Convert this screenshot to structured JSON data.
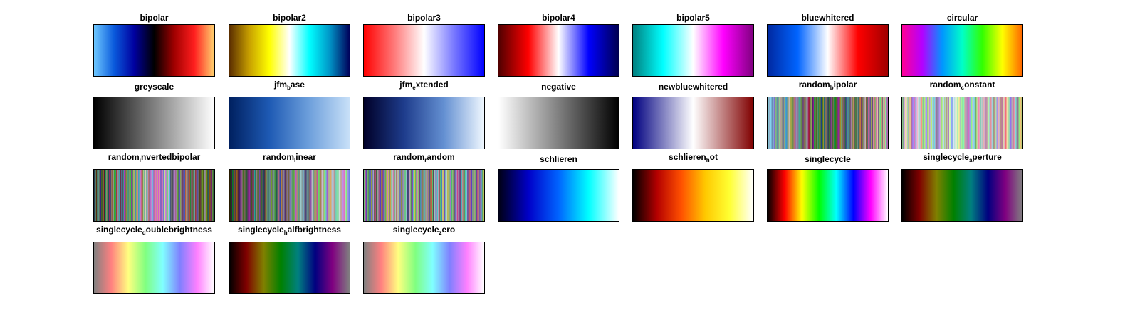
{
  "colormaps": [
    {
      "main": "bipolar",
      "sub": "",
      "rest": "",
      "stops": [
        "#6ec8ff",
        "#0a5adc",
        "#0000a0",
        "#000000",
        "#a00000",
        "#ff1e1e",
        "#ffd26e"
      ]
    },
    {
      "main": "bipolar2",
      "sub": "",
      "rest": "",
      "stops": [
        "#5a2d00",
        "#c8a000",
        "#ffff00",
        "#ffffff",
        "#00ffff",
        "#0096c8",
        "#00005a"
      ]
    },
    {
      "main": "bipolar3",
      "sub": "",
      "rest": "",
      "stops": [
        "#ff0000",
        "#ff7878",
        "#ffffff",
        "#7878ff",
        "#0000ff"
      ]
    },
    {
      "main": "bipolar4",
      "sub": "",
      "rest": "",
      "stops": [
        "#500000",
        "#ff0000",
        "#ffffff",
        "#0000ff",
        "#000050"
      ]
    },
    {
      "main": "bipolar5",
      "sub": "",
      "rest": "",
      "stops": [
        "#008080",
        "#00ffff",
        "#ffffff",
        "#ff00ff",
        "#800080"
      ]
    },
    {
      "main": "bluewhitered",
      "sub": "",
      "rest": "",
      "stops": [
        "#0028a0",
        "#0064ff",
        "#ffffff",
        "#ff0000",
        "#a00000"
      ]
    },
    {
      "main": "circular",
      "sub": "",
      "rest": "",
      "stops": [
        "#ff0096",
        "#b400ff",
        "#0096ff",
        "#00ffc8",
        "#32ff00",
        "#ffff00",
        "#ff6400"
      ]
    },
    {
      "main": "greyscale",
      "sub": "",
      "rest": "",
      "stops": [
        "#000000",
        "#ffffff"
      ]
    },
    {
      "main": "jfm",
      "sub": "b",
      "rest": "ase",
      "stops": [
        "#002060",
        "#1e5ab4",
        "#6ea0dc",
        "#c8e0f8"
      ]
    },
    {
      "main": "jfm",
      "sub": "e",
      "rest": "xtended",
      "stops": [
        "#000028",
        "#1e3c8c",
        "#6490d2",
        "#f0f8ff"
      ]
    },
    {
      "main": "negative",
      "sub": "",
      "rest": "",
      "stops": [
        "#ffffff",
        "#000000"
      ]
    },
    {
      "main": "newbluewhitered",
      "sub": "",
      "rest": "",
      "stops": [
        "#000080",
        "#ffffff",
        "#800000"
      ]
    },
    {
      "main": "random",
      "sub": "b",
      "rest": "ipolar",
      "stops": [
        "#c8dcff",
        "#000000",
        "#ffe6c8"
      ]
    },
    {
      "main": "random",
      "sub": "c",
      "rest": "onstant",
      "stops": [
        "#f0f0ff",
        "#f0f0ff"
      ]
    },
    {
      "main": "random",
      "sub": "i",
      "rest": "nvertedbipolar",
      "stops": [
        "#000000",
        "#d2d2e6",
        "#000000"
      ]
    },
    {
      "main": "random",
      "sub": "l",
      "rest": "inear",
      "stops": [
        "#000000",
        "#e6e6f0"
      ]
    },
    {
      "main": "random",
      "sub": "r",
      "rest": "andom",
      "stops": [
        "#8c8c8c",
        "#8c8c8c"
      ]
    },
    {
      "main": "schlieren",
      "sub": "",
      "rest": "",
      "stops": [
        "#000014",
        "#0000c8",
        "#0064ff",
        "#00ffff",
        "#ffffff"
      ]
    },
    {
      "main": "schlieren",
      "sub": "h",
      "rest": "ot",
      "stops": [
        "#000000",
        "#b40000",
        "#ff5000",
        "#ffc800",
        "#ffff32",
        "#ffffff"
      ]
    },
    {
      "main": "singlecycle",
      "sub": "",
      "rest": "",
      "stops": [
        "#000000",
        "#ff0000",
        "#ffff00",
        "#00ff00",
        "#00ffff",
        "#0000ff",
        "#ff00ff",
        "#ffffff"
      ]
    },
    {
      "main": "singlecycle",
      "sub": "a",
      "rest": "perture",
      "stops": [
        "#000000",
        "#800000",
        "#808000",
        "#008000",
        "#008080",
        "#000080",
        "#800080",
        "#808080"
      ]
    },
    {
      "main": "singlecycle",
      "sub": "d",
      "rest": "oublebrightness",
      "stops": [
        "#808080",
        "#ff8080",
        "#ffff80",
        "#80ff80",
        "#80ffff",
        "#8080ff",
        "#ff80ff",
        "#ffffff"
      ]
    },
    {
      "main": "singlecycle",
      "sub": "h",
      "rest": "alfbrightness",
      "stops": [
        "#000000",
        "#800000",
        "#808000",
        "#008000",
        "#008080",
        "#000080",
        "#800080",
        "#808080"
      ]
    },
    {
      "main": "singlecycle",
      "sub": "z",
      "rest": "ero",
      "stops": [
        "#808080",
        "#ff8080",
        "#ffff80",
        "#80ff80",
        "#80ffff",
        "#8080ff",
        "#ff80ff",
        "#ffffff"
      ]
    }
  ]
}
